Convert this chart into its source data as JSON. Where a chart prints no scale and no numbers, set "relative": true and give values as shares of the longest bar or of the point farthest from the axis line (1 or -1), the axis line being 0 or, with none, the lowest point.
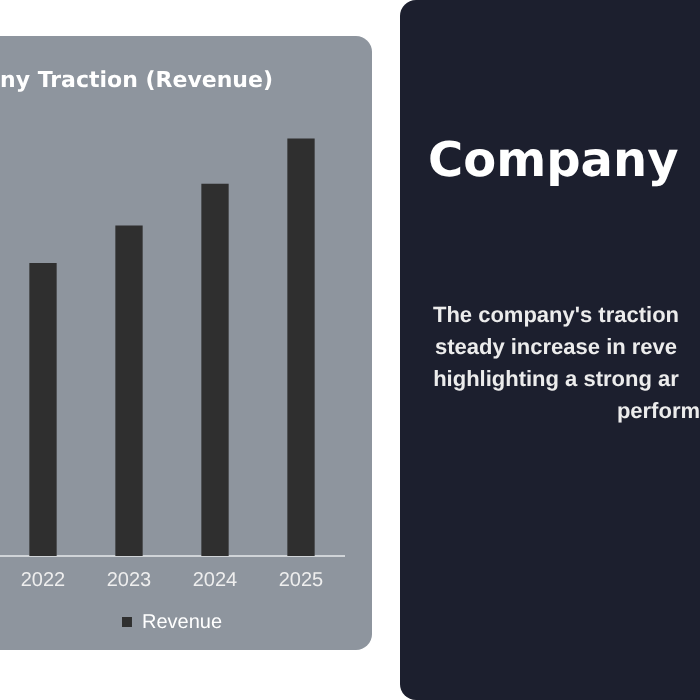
{
  "chart_data": {
    "type": "bar",
    "title": "ny Traction (Revenue)",
    "categories": [
      "2022",
      "2023",
      "2024",
      "2025"
    ],
    "relative": true,
    "series": [
      {
        "name": "Revenue",
        "color": "#2f2f2f",
        "values": [
          0.7,
          0.79,
          0.89,
          1
        ]
      }
    ],
    "legend": "bottom",
    "grid": false,
    "annotations": [
      "Company",
      "The company's traction",
      "steady increase in reve",
      "highlighting a strong ar",
      "perform"
    ]
  }
}
